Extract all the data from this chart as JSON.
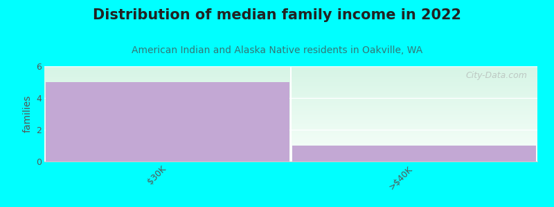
{
  "title": "Distribution of median family income in 2022",
  "subtitle": "American Indian and Alaska Native residents in Oakville, WA",
  "categories": [
    "$30K",
    ">$40K"
  ],
  "values": [
    5,
    1
  ],
  "bar_color": "#c3a8d4",
  "bg_color": "#00ffff",
  "ylim": [
    0,
    6
  ],
  "yticks": [
    0,
    2,
    4,
    6
  ],
  "ylabel": "families",
  "title_fontsize": 15,
  "subtitle_fontsize": 10,
  "watermark": "City-Data.com",
  "grid_color": "#e0e0e0",
  "plot_top_color": "#d8f5e8",
  "plot_bottom_color": "#f0faf4",
  "title_color": "#222222",
  "subtitle_color": "#337777",
  "tick_color": "#555555"
}
